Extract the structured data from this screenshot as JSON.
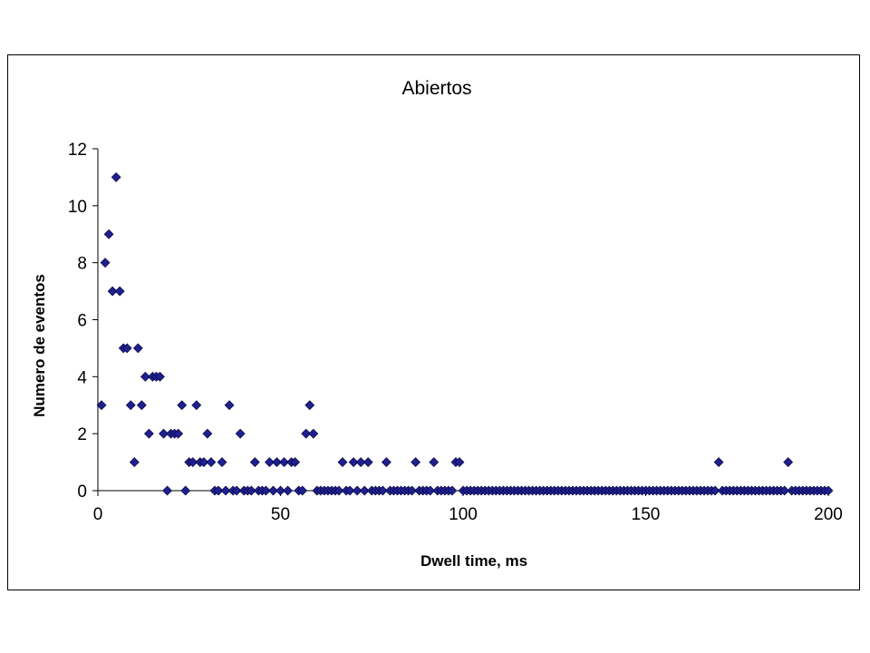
{
  "chart_data": {
    "type": "scatter",
    "title": "Abiertos",
    "xlabel": "Dwell time, ms",
    "ylabel": "Numero de eventos",
    "xlim": [
      0,
      200
    ],
    "ylim": [
      0,
      12
    ],
    "xticks": [
      0,
      50,
      100,
      150,
      200
    ],
    "yticks": [
      0,
      2,
      4,
      6,
      8,
      10,
      12
    ],
    "grid": false,
    "legend": "none",
    "marker": "diamond",
    "marker_color": "#1F1F8F",
    "series": [
      {
        "points": [
          [
            1,
            3
          ],
          [
            2,
            8
          ],
          [
            3,
            9
          ],
          [
            4,
            7
          ],
          [
            5,
            11
          ],
          [
            6,
            7
          ],
          [
            7,
            5
          ],
          [
            8,
            5
          ],
          [
            9,
            3
          ],
          [
            10,
            1
          ],
          [
            11,
            5
          ],
          [
            12,
            3
          ],
          [
            13,
            4
          ],
          [
            14,
            2
          ],
          [
            15,
            4
          ],
          [
            16,
            4
          ],
          [
            17,
            4
          ],
          [
            18,
            2
          ],
          [
            19,
            0
          ],
          [
            20,
            2
          ],
          [
            21,
            2
          ],
          [
            22,
            2
          ],
          [
            23,
            3
          ],
          [
            24,
            0
          ],
          [
            25,
            1
          ],
          [
            26,
            1
          ],
          [
            27,
            3
          ],
          [
            28,
            1
          ],
          [
            29,
            1
          ],
          [
            30,
            2
          ],
          [
            31,
            1
          ],
          [
            32,
            0
          ],
          [
            33,
            0
          ],
          [
            34,
            1
          ],
          [
            35,
            0
          ],
          [
            36,
            3
          ],
          [
            37,
            0
          ],
          [
            38,
            0
          ],
          [
            39,
            2
          ],
          [
            40,
            0
          ],
          [
            41,
            0
          ],
          [
            42,
            0
          ],
          [
            43,
            1
          ],
          [
            44,
            0
          ],
          [
            45,
            0
          ],
          [
            46,
            0
          ],
          [
            47,
            1
          ],
          [
            48,
            0
          ],
          [
            49,
            1
          ],
          [
            50,
            0
          ],
          [
            51,
            1
          ],
          [
            52,
            0
          ],
          [
            53,
            1
          ],
          [
            54,
            1
          ],
          [
            55,
            0
          ],
          [
            56,
            0
          ],
          [
            57,
            2
          ],
          [
            58,
            3
          ],
          [
            59,
            2
          ],
          [
            60,
            0
          ],
          [
            61,
            0
          ],
          [
            62,
            0
          ],
          [
            63,
            0
          ],
          [
            64,
            0
          ],
          [
            65,
            0
          ],
          [
            66,
            0
          ],
          [
            67,
            1
          ],
          [
            68,
            0
          ],
          [
            69,
            0
          ],
          [
            70,
            1
          ],
          [
            71,
            0
          ],
          [
            72,
            1
          ],
          [
            73,
            0
          ],
          [
            74,
            1
          ],
          [
            75,
            0
          ],
          [
            76,
            0
          ],
          [
            77,
            0
          ],
          [
            78,
            0
          ],
          [
            79,
            1
          ],
          [
            80,
            0
          ],
          [
            81,
            0
          ],
          [
            82,
            0
          ],
          [
            83,
            0
          ],
          [
            84,
            0
          ],
          [
            85,
            0
          ],
          [
            86,
            0
          ],
          [
            87,
            1
          ],
          [
            88,
            0
          ],
          [
            89,
            0
          ],
          [
            90,
            0
          ],
          [
            91,
            0
          ],
          [
            92,
            1
          ],
          [
            93,
            0
          ],
          [
            94,
            0
          ],
          [
            95,
            0
          ],
          [
            96,
            0
          ],
          [
            97,
            0
          ],
          [
            98,
            1
          ],
          [
            99,
            1
          ],
          [
            100,
            0
          ],
          [
            101,
            0
          ],
          [
            102,
            0
          ],
          [
            103,
            0
          ],
          [
            104,
            0
          ],
          [
            105,
            0
          ],
          [
            106,
            0
          ],
          [
            107,
            0
          ],
          [
            108,
            0
          ],
          [
            109,
            0
          ],
          [
            110,
            0
          ],
          [
            111,
            0
          ],
          [
            112,
            0
          ],
          [
            113,
            0
          ],
          [
            114,
            0
          ],
          [
            115,
            0
          ],
          [
            116,
            0
          ],
          [
            117,
            0
          ],
          [
            118,
            0
          ],
          [
            119,
            0
          ],
          [
            120,
            0
          ],
          [
            121,
            0
          ],
          [
            122,
            0
          ],
          [
            123,
            0
          ],
          [
            124,
            0
          ],
          [
            125,
            0
          ],
          [
            126,
            0
          ],
          [
            127,
            0
          ],
          [
            128,
            0
          ],
          [
            129,
            0
          ],
          [
            130,
            0
          ],
          [
            131,
            0
          ],
          [
            132,
            0
          ],
          [
            133,
            0
          ],
          [
            134,
            0
          ],
          [
            135,
            0
          ],
          [
            136,
            0
          ],
          [
            137,
            0
          ],
          [
            138,
            0
          ],
          [
            139,
            0
          ],
          [
            140,
            0
          ],
          [
            141,
            0
          ],
          [
            142,
            0
          ],
          [
            143,
            0
          ],
          [
            144,
            0
          ],
          [
            145,
            0
          ],
          [
            146,
            0
          ],
          [
            147,
            0
          ],
          [
            148,
            0
          ],
          [
            149,
            0
          ],
          [
            150,
            0
          ],
          [
            151,
            0
          ],
          [
            152,
            0
          ],
          [
            153,
            0
          ],
          [
            154,
            0
          ],
          [
            155,
            0
          ],
          [
            156,
            0
          ],
          [
            157,
            0
          ],
          [
            158,
            0
          ],
          [
            159,
            0
          ],
          [
            160,
            0
          ],
          [
            161,
            0
          ],
          [
            162,
            0
          ],
          [
            163,
            0
          ],
          [
            164,
            0
          ],
          [
            165,
            0
          ],
          [
            166,
            0
          ],
          [
            167,
            0
          ],
          [
            168,
            0
          ],
          [
            169,
            0
          ],
          [
            170,
            1
          ],
          [
            171,
            0
          ],
          [
            172,
            0
          ],
          [
            173,
            0
          ],
          [
            174,
            0
          ],
          [
            175,
            0
          ],
          [
            176,
            0
          ],
          [
            177,
            0
          ],
          [
            178,
            0
          ],
          [
            179,
            0
          ],
          [
            180,
            0
          ],
          [
            181,
            0
          ],
          [
            182,
            0
          ],
          [
            183,
            0
          ],
          [
            184,
            0
          ],
          [
            185,
            0
          ],
          [
            186,
            0
          ],
          [
            187,
            0
          ],
          [
            188,
            0
          ],
          [
            189,
            1
          ],
          [
            190,
            0
          ],
          [
            191,
            0
          ],
          [
            192,
            0
          ],
          [
            193,
            0
          ],
          [
            194,
            0
          ],
          [
            195,
            0
          ],
          [
            196,
            0
          ],
          [
            197,
            0
          ],
          [
            198,
            0
          ],
          [
            199,
            0
          ],
          [
            200,
            0
          ]
        ]
      }
    ]
  }
}
